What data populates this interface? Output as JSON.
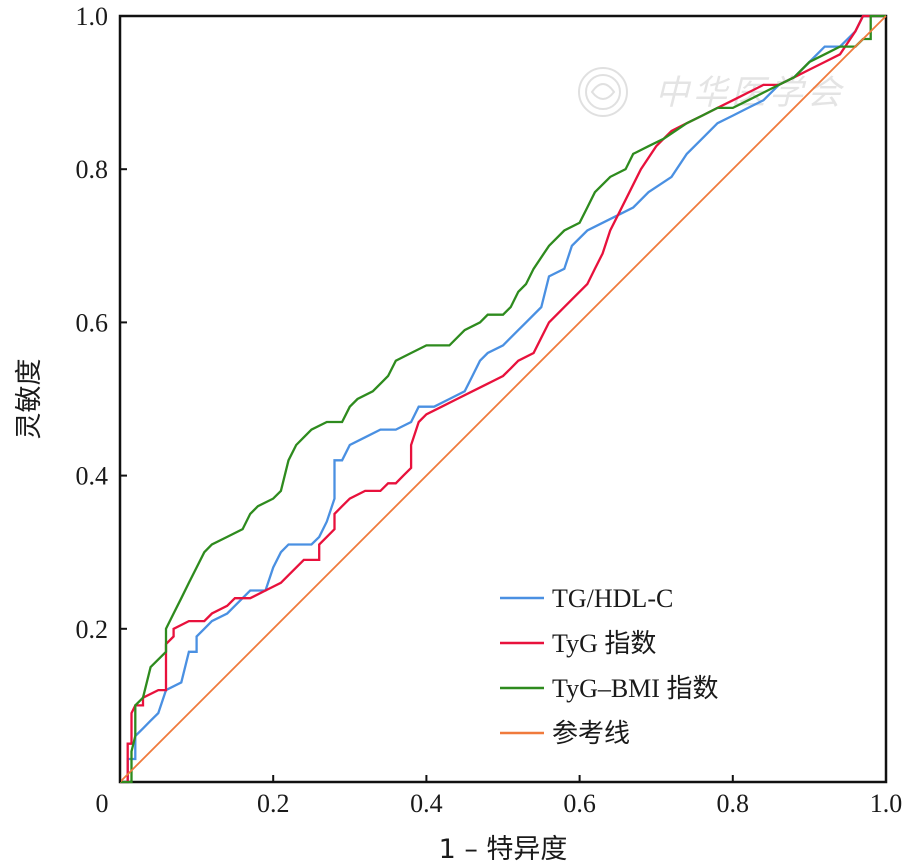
{
  "chart_data": {
    "type": "line",
    "title": "",
    "xlabel": "1 – 特异度",
    "ylabel": "灵敏度",
    "xlim": [
      0,
      1
    ],
    "ylim": [
      0,
      1
    ],
    "x_ticks": [
      "0",
      "0.2",
      "0.4",
      "0.6",
      "0.8",
      "1.0"
    ],
    "y_ticks": [
      "0.2",
      "0.4",
      "0.6",
      "0.8",
      "1.0"
    ],
    "grid": false,
    "legend_position": "bottom-right",
    "watermark": "中华医学会",
    "series": [
      {
        "name": "TG/HDL-C",
        "color": "#4a90e2",
        "points": [
          [
            0,
            0
          ],
          [
            0.01,
            0
          ],
          [
            0.01,
            0.03
          ],
          [
            0.02,
            0.03
          ],
          [
            0.02,
            0.06
          ],
          [
            0.03,
            0.07
          ],
          [
            0.04,
            0.08
          ],
          [
            0.05,
            0.09
          ],
          [
            0.06,
            0.12
          ],
          [
            0.08,
            0.13
          ],
          [
            0.09,
            0.17
          ],
          [
            0.1,
            0.17
          ],
          [
            0.1,
            0.19
          ],
          [
            0.11,
            0.2
          ],
          [
            0.12,
            0.21
          ],
          [
            0.14,
            0.22
          ],
          [
            0.15,
            0.23
          ],
          [
            0.17,
            0.25
          ],
          [
            0.19,
            0.25
          ],
          [
            0.2,
            0.28
          ],
          [
            0.21,
            0.3
          ],
          [
            0.22,
            0.31
          ],
          [
            0.25,
            0.31
          ],
          [
            0.26,
            0.32
          ],
          [
            0.27,
            0.34
          ],
          [
            0.28,
            0.37
          ],
          [
            0.28,
            0.42
          ],
          [
            0.29,
            0.42
          ],
          [
            0.3,
            0.44
          ],
          [
            0.32,
            0.45
          ],
          [
            0.34,
            0.46
          ],
          [
            0.36,
            0.46
          ],
          [
            0.38,
            0.47
          ],
          [
            0.39,
            0.49
          ],
          [
            0.41,
            0.49
          ],
          [
            0.43,
            0.5
          ],
          [
            0.45,
            0.51
          ],
          [
            0.46,
            0.53
          ],
          [
            0.47,
            0.55
          ],
          [
            0.48,
            0.56
          ],
          [
            0.5,
            0.57
          ],
          [
            0.52,
            0.59
          ],
          [
            0.53,
            0.6
          ],
          [
            0.55,
            0.62
          ],
          [
            0.56,
            0.66
          ],
          [
            0.58,
            0.67
          ],
          [
            0.59,
            0.7
          ],
          [
            0.61,
            0.72
          ],
          [
            0.63,
            0.73
          ],
          [
            0.65,
            0.74
          ],
          [
            0.67,
            0.75
          ],
          [
            0.69,
            0.77
          ],
          [
            0.72,
            0.79
          ],
          [
            0.74,
            0.82
          ],
          [
            0.76,
            0.84
          ],
          [
            0.78,
            0.86
          ],
          [
            0.8,
            0.87
          ],
          [
            0.82,
            0.88
          ],
          [
            0.84,
            0.89
          ],
          [
            0.86,
            0.91
          ],
          [
            0.88,
            0.92
          ],
          [
            0.9,
            0.94
          ],
          [
            0.92,
            0.96
          ],
          [
            0.94,
            0.96
          ],
          [
            0.96,
            0.98
          ],
          [
            0.97,
            1.0
          ],
          [
            1.0,
            1.0
          ]
        ]
      },
      {
        "name": "TyG 指数",
        "color": "#e8113c",
        "points": [
          [
            0,
            0
          ],
          [
            0.01,
            0
          ],
          [
            0.01,
            0.05
          ],
          [
            0.015,
            0.05
          ],
          [
            0.015,
            0.09
          ],
          [
            0.02,
            0.1
          ],
          [
            0.03,
            0.1
          ],
          [
            0.03,
            0.11
          ],
          [
            0.05,
            0.12
          ],
          [
            0.06,
            0.12
          ],
          [
            0.06,
            0.18
          ],
          [
            0.07,
            0.19
          ],
          [
            0.07,
            0.2
          ],
          [
            0.09,
            0.21
          ],
          [
            0.11,
            0.21
          ],
          [
            0.12,
            0.22
          ],
          [
            0.14,
            0.23
          ],
          [
            0.15,
            0.24
          ],
          [
            0.17,
            0.24
          ],
          [
            0.19,
            0.25
          ],
          [
            0.21,
            0.26
          ],
          [
            0.22,
            0.27
          ],
          [
            0.24,
            0.29
          ],
          [
            0.26,
            0.29
          ],
          [
            0.26,
            0.31
          ],
          [
            0.27,
            0.32
          ],
          [
            0.28,
            0.33
          ],
          [
            0.28,
            0.35
          ],
          [
            0.29,
            0.36
          ],
          [
            0.3,
            0.37
          ],
          [
            0.32,
            0.38
          ],
          [
            0.34,
            0.38
          ],
          [
            0.35,
            0.39
          ],
          [
            0.36,
            0.39
          ],
          [
            0.37,
            0.4
          ],
          [
            0.38,
            0.41
          ],
          [
            0.38,
            0.44
          ],
          [
            0.39,
            0.47
          ],
          [
            0.4,
            0.48
          ],
          [
            0.42,
            0.49
          ],
          [
            0.44,
            0.5
          ],
          [
            0.46,
            0.51
          ],
          [
            0.48,
            0.52
          ],
          [
            0.5,
            0.53
          ],
          [
            0.51,
            0.54
          ],
          [
            0.52,
            0.55
          ],
          [
            0.54,
            0.56
          ],
          [
            0.55,
            0.58
          ],
          [
            0.56,
            0.6
          ],
          [
            0.58,
            0.62
          ],
          [
            0.59,
            0.63
          ],
          [
            0.61,
            0.65
          ],
          [
            0.62,
            0.67
          ],
          [
            0.63,
            0.69
          ],
          [
            0.64,
            0.72
          ],
          [
            0.65,
            0.74
          ],
          [
            0.66,
            0.76
          ],
          [
            0.68,
            0.8
          ],
          [
            0.7,
            0.83
          ],
          [
            0.72,
            0.85
          ],
          [
            0.74,
            0.86
          ],
          [
            0.76,
            0.87
          ],
          [
            0.78,
            0.88
          ],
          [
            0.8,
            0.89
          ],
          [
            0.82,
            0.9
          ],
          [
            0.84,
            0.91
          ],
          [
            0.86,
            0.91
          ],
          [
            0.88,
            0.92
          ],
          [
            0.9,
            0.93
          ],
          [
            0.92,
            0.94
          ],
          [
            0.94,
            0.95
          ],
          [
            0.96,
            0.98
          ],
          [
            0.97,
            1.0
          ],
          [
            1.0,
            1.0
          ]
        ]
      },
      {
        "name": "TyG–BMI 指数",
        "color": "#2e8b1e",
        "points": [
          [
            0,
            0
          ],
          [
            0.015,
            0
          ],
          [
            0.015,
            0.04
          ],
          [
            0.02,
            0.06
          ],
          [
            0.02,
            0.1
          ],
          [
            0.03,
            0.11
          ],
          [
            0.04,
            0.15
          ],
          [
            0.05,
            0.16
          ],
          [
            0.06,
            0.17
          ],
          [
            0.06,
            0.2
          ],
          [
            0.07,
            0.22
          ],
          [
            0.08,
            0.24
          ],
          [
            0.09,
            0.26
          ],
          [
            0.1,
            0.28
          ],
          [
            0.11,
            0.3
          ],
          [
            0.12,
            0.31
          ],
          [
            0.14,
            0.32
          ],
          [
            0.16,
            0.33
          ],
          [
            0.17,
            0.35
          ],
          [
            0.18,
            0.36
          ],
          [
            0.2,
            0.37
          ],
          [
            0.21,
            0.38
          ],
          [
            0.22,
            0.42
          ],
          [
            0.23,
            0.44
          ],
          [
            0.24,
            0.45
          ],
          [
            0.25,
            0.46
          ],
          [
            0.27,
            0.47
          ],
          [
            0.29,
            0.47
          ],
          [
            0.3,
            0.49
          ],
          [
            0.31,
            0.5
          ],
          [
            0.33,
            0.51
          ],
          [
            0.35,
            0.53
          ],
          [
            0.36,
            0.55
          ],
          [
            0.38,
            0.56
          ],
          [
            0.4,
            0.57
          ],
          [
            0.43,
            0.57
          ],
          [
            0.45,
            0.59
          ],
          [
            0.47,
            0.6
          ],
          [
            0.48,
            0.61
          ],
          [
            0.5,
            0.61
          ],
          [
            0.51,
            0.62
          ],
          [
            0.52,
            0.64
          ],
          [
            0.53,
            0.65
          ],
          [
            0.54,
            0.67
          ],
          [
            0.56,
            0.7
          ],
          [
            0.58,
            0.72
          ],
          [
            0.6,
            0.73
          ],
          [
            0.61,
            0.75
          ],
          [
            0.62,
            0.77
          ],
          [
            0.64,
            0.79
          ],
          [
            0.66,
            0.8
          ],
          [
            0.67,
            0.82
          ],
          [
            0.69,
            0.83
          ],
          [
            0.71,
            0.84
          ],
          [
            0.74,
            0.86
          ],
          [
            0.76,
            0.87
          ],
          [
            0.78,
            0.88
          ],
          [
            0.8,
            0.88
          ],
          [
            0.82,
            0.89
          ],
          [
            0.84,
            0.9
          ],
          [
            0.86,
            0.91
          ],
          [
            0.88,
            0.92
          ],
          [
            0.9,
            0.94
          ],
          [
            0.92,
            0.95
          ],
          [
            0.94,
            0.96
          ],
          [
            0.96,
            0.96
          ],
          [
            0.97,
            0.97
          ],
          [
            0.98,
            0.97
          ],
          [
            0.98,
            1.0
          ],
          [
            1.0,
            1.0
          ]
        ]
      },
      {
        "name": "参考线",
        "color": "#f07a3c",
        "points": [
          [
            0,
            0
          ],
          [
            1,
            1
          ]
        ]
      }
    ]
  }
}
